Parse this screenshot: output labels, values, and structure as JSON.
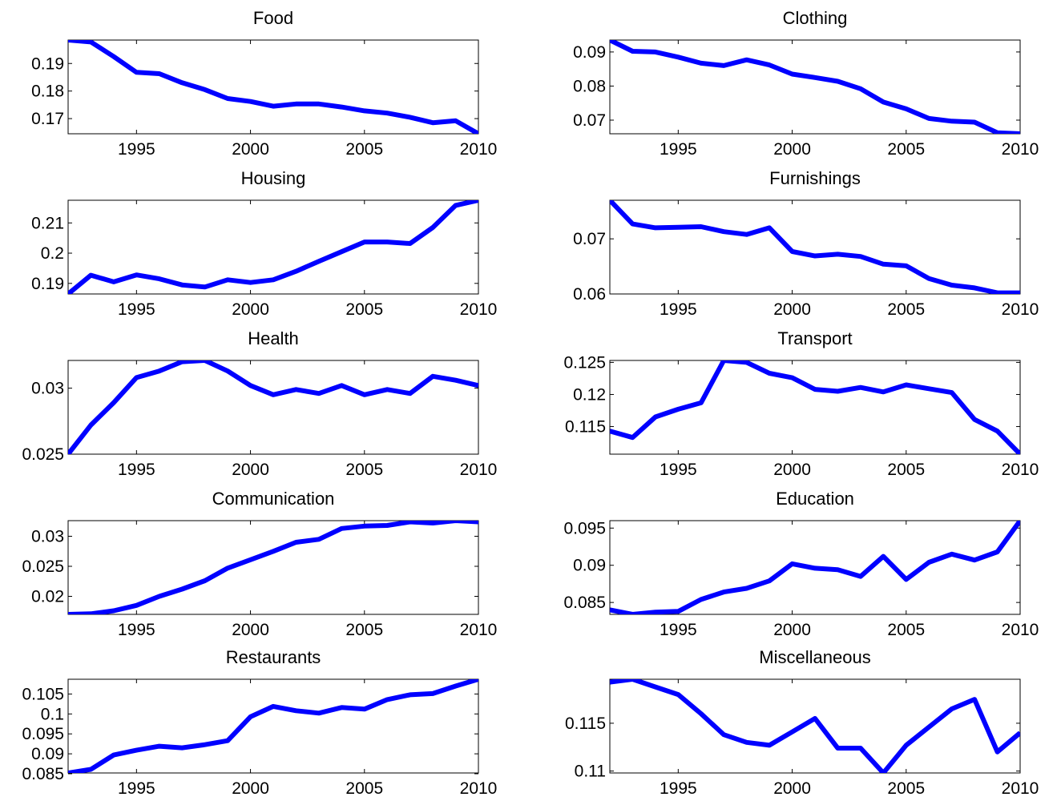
{
  "line_color": "#0000ff",
  "chart_data": [
    {
      "type": "line",
      "title": "Food",
      "x": [
        1992,
        1993,
        1994,
        1995,
        1996,
        1997,
        1998,
        1999,
        2000,
        2001,
        2002,
        2003,
        2004,
        2005,
        2006,
        2007,
        2008,
        2009,
        2010
      ],
      "values": [
        0.1985,
        0.1978,
        0.1925,
        0.1868,
        0.1863,
        0.183,
        0.1805,
        0.1773,
        0.1762,
        0.1745,
        0.1753,
        0.1753,
        0.1742,
        0.1728,
        0.172,
        0.1705,
        0.1685,
        0.1692,
        0.1645
      ],
      "xlim": [
        1992,
        2010
      ],
      "ylim": [
        0.1645,
        0.1985
      ],
      "xticks": [
        1995,
        2000,
        2005,
        2010
      ],
      "yticks": [
        0.17,
        0.18,
        0.19
      ],
      "ytick_labels": [
        "0.17",
        "0.18",
        "0.19"
      ]
    },
    {
      "type": "line",
      "title": "Clothing",
      "x": [
        1992,
        1993,
        1994,
        1995,
        1996,
        1997,
        1998,
        1999,
        2000,
        2001,
        2002,
        2003,
        2004,
        2005,
        2006,
        2007,
        2008,
        2009,
        2010
      ],
      "values": [
        0.0935,
        0.0902,
        0.09,
        0.0885,
        0.0867,
        0.086,
        0.0877,
        0.0862,
        0.0835,
        0.0825,
        0.0814,
        0.0792,
        0.0753,
        0.0733,
        0.0705,
        0.0697,
        0.0694,
        0.0663,
        0.066
      ],
      "xlim": [
        1992,
        2010
      ],
      "ylim": [
        0.066,
        0.0935
      ],
      "xticks": [
        1995,
        2000,
        2005,
        2010
      ],
      "yticks": [
        0.07,
        0.08,
        0.09
      ],
      "ytick_labels": [
        "0.07",
        "0.08",
        "0.09"
      ]
    },
    {
      "type": "line",
      "title": "Housing",
      "x": [
        1992,
        1993,
        1994,
        1995,
        1996,
        1997,
        1998,
        1999,
        2000,
        2001,
        2002,
        2003,
        2004,
        2005,
        2006,
        2007,
        2008,
        2009,
        2010
      ],
      "values": [
        0.1865,
        0.1927,
        0.1905,
        0.1928,
        0.1915,
        0.1895,
        0.1888,
        0.1912,
        0.1903,
        0.1912,
        0.194,
        0.1973,
        0.2005,
        0.2037,
        0.2037,
        0.2032,
        0.2085,
        0.2158,
        0.2175
      ],
      "xlim": [
        1992,
        2010
      ],
      "ylim": [
        0.1865,
        0.2175
      ],
      "xticks": [
        1995,
        2000,
        2005,
        2010
      ],
      "yticks": [
        0.19,
        0.2,
        0.21
      ],
      "ytick_labels": [
        "0.19",
        "0.2",
        "0.21"
      ]
    },
    {
      "type": "line",
      "title": "Furnishings",
      "x": [
        1992,
        1993,
        1994,
        1995,
        1996,
        1997,
        1998,
        1999,
        2000,
        2001,
        2002,
        2003,
        2004,
        2005,
        2006,
        2007,
        2008,
        2009,
        2010
      ],
      "values": [
        0.077,
        0.0727,
        0.072,
        0.0721,
        0.0722,
        0.0713,
        0.0708,
        0.072,
        0.0677,
        0.0669,
        0.0672,
        0.0668,
        0.0654,
        0.0651,
        0.0628,
        0.0616,
        0.0611,
        0.0602,
        0.0602
      ],
      "xlim": [
        1992,
        2010
      ],
      "ylim": [
        0.06,
        0.077
      ],
      "xticks": [
        1995,
        2000,
        2005,
        2010
      ],
      "yticks": [
        0.06,
        0.07
      ],
      "ytick_labels": [
        "0.06",
        "0.07"
      ]
    },
    {
      "type": "line",
      "title": "Health",
      "x": [
        1992,
        1993,
        1994,
        1995,
        1996,
        1997,
        1998,
        1999,
        2000,
        2001,
        2002,
        2003,
        2004,
        2005,
        2006,
        2007,
        2008,
        2009,
        2010
      ],
      "values": [
        0.025,
        0.0272,
        0.0289,
        0.0308,
        0.0313,
        0.032,
        0.0321,
        0.0313,
        0.0302,
        0.0295,
        0.0299,
        0.0296,
        0.0302,
        0.0295,
        0.0299,
        0.0296,
        0.0309,
        0.0306,
        0.0302
      ],
      "xlim": [
        1992,
        2010
      ],
      "ylim": [
        0.025,
        0.0321
      ],
      "xticks": [
        1995,
        2000,
        2005,
        2010
      ],
      "yticks": [
        0.025,
        0.03
      ],
      "ytick_labels": [
        "0.025",
        "0.03"
      ]
    },
    {
      "type": "line",
      "title": "Transport",
      "x": [
        1992,
        1993,
        1994,
        1995,
        1996,
        1997,
        1998,
        1999,
        2000,
        2001,
        2002,
        2003,
        2004,
        2005,
        2006,
        2007,
        2008,
        2009,
        2010
      ],
      "values": [
        0.1143,
        0.1133,
        0.1165,
        0.1177,
        0.1187,
        0.1253,
        0.125,
        0.1233,
        0.1226,
        0.1208,
        0.1205,
        0.1211,
        0.1204,
        0.1215,
        0.1209,
        0.1203,
        0.1161,
        0.1143,
        0.1107
      ],
      "xlim": [
        1992,
        2010
      ],
      "ylim": [
        0.1107,
        0.1253
      ],
      "xticks": [
        1995,
        2000,
        2005,
        2010
      ],
      "yticks": [
        0.115,
        0.12,
        0.125
      ],
      "ytick_labels": [
        "0.115",
        "0.12",
        "0.125"
      ]
    },
    {
      "type": "line",
      "title": "Communication",
      "x": [
        1992,
        1993,
        1994,
        1995,
        1996,
        1997,
        1998,
        1999,
        2000,
        2001,
        2002,
        2003,
        2004,
        2005,
        2006,
        2007,
        2008,
        2009,
        2010
      ],
      "values": [
        0.017,
        0.0171,
        0.0176,
        0.0185,
        0.02,
        0.0212,
        0.0226,
        0.0247,
        0.0261,
        0.0275,
        0.029,
        0.0295,
        0.0313,
        0.0317,
        0.0318,
        0.0324,
        0.0322,
        0.0326,
        0.0324
      ],
      "xlim": [
        1992,
        2010
      ],
      "ylim": [
        0.017,
        0.0326
      ],
      "xticks": [
        1995,
        2000,
        2005,
        2010
      ],
      "yticks": [
        0.02,
        0.025,
        0.03
      ],
      "ytick_labels": [
        "0.02",
        "0.025",
        "0.03"
      ]
    },
    {
      "type": "line",
      "title": "Education",
      "x": [
        1992,
        1993,
        1994,
        1995,
        1996,
        1997,
        1998,
        1999,
        2000,
        2001,
        2002,
        2003,
        2004,
        2005,
        2006,
        2007,
        2008,
        2009,
        2010
      ],
      "values": [
        0.084,
        0.0834,
        0.0837,
        0.0838,
        0.0854,
        0.0864,
        0.0869,
        0.0879,
        0.0902,
        0.0896,
        0.0894,
        0.0885,
        0.0912,
        0.0881,
        0.0904,
        0.0915,
        0.0907,
        0.0918,
        0.096
      ],
      "xlim": [
        1992,
        2010
      ],
      "ylim": [
        0.0834,
        0.096
      ],
      "xticks": [
        1995,
        2000,
        2005,
        2010
      ],
      "yticks": [
        0.085,
        0.09,
        0.095
      ],
      "ytick_labels": [
        "0.085",
        "0.09",
        "0.095"
      ]
    },
    {
      "type": "line",
      "title": "Restaurants",
      "x": [
        1992,
        1993,
        1994,
        1995,
        1996,
        1997,
        1998,
        1999,
        2000,
        2001,
        2002,
        2003,
        2004,
        2005,
        2006,
        2007,
        2008,
        2009,
        2010
      ],
      "values": [
        0.0852,
        0.0861,
        0.0897,
        0.0909,
        0.0919,
        0.0915,
        0.0923,
        0.0933,
        0.0993,
        0.1019,
        0.1008,
        0.1002,
        0.1016,
        0.1012,
        0.1036,
        0.1048,
        0.1051,
        0.107,
        0.1087
      ],
      "xlim": [
        1992,
        2010
      ],
      "ylim": [
        0.0852,
        0.1087
      ],
      "xticks": [
        1995,
        2000,
        2005,
        2010
      ],
      "yticks": [
        0.085,
        0.09,
        0.095,
        0.1,
        0.105
      ],
      "ytick_labels": [
        "0.085",
        "0.09",
        "0.095",
        "0.1",
        "0.105"
      ]
    },
    {
      "type": "line",
      "title": "Miscellaneous",
      "x": [
        1992,
        1993,
        1994,
        1995,
        1996,
        1997,
        1998,
        1999,
        2000,
        2001,
        2002,
        2003,
        2004,
        2005,
        2006,
        2007,
        2008,
        2009,
        2010
      ],
      "values": [
        0.1193,
        0.1196,
        0.1188,
        0.118,
        0.116,
        0.1138,
        0.113,
        0.1127,
        0.1141,
        0.1155,
        0.1124,
        0.1124,
        0.1098,
        0.1127,
        0.1146,
        0.1165,
        0.1175,
        0.112,
        0.114
      ],
      "xlim": [
        1992,
        2010
      ],
      "ylim": [
        0.1098,
        0.1196
      ],
      "xticks": [
        1995,
        2000,
        2005,
        2010
      ],
      "yticks": [
        0.11,
        0.115
      ],
      "ytick_labels": [
        "0.11",
        "0.115"
      ]
    }
  ]
}
